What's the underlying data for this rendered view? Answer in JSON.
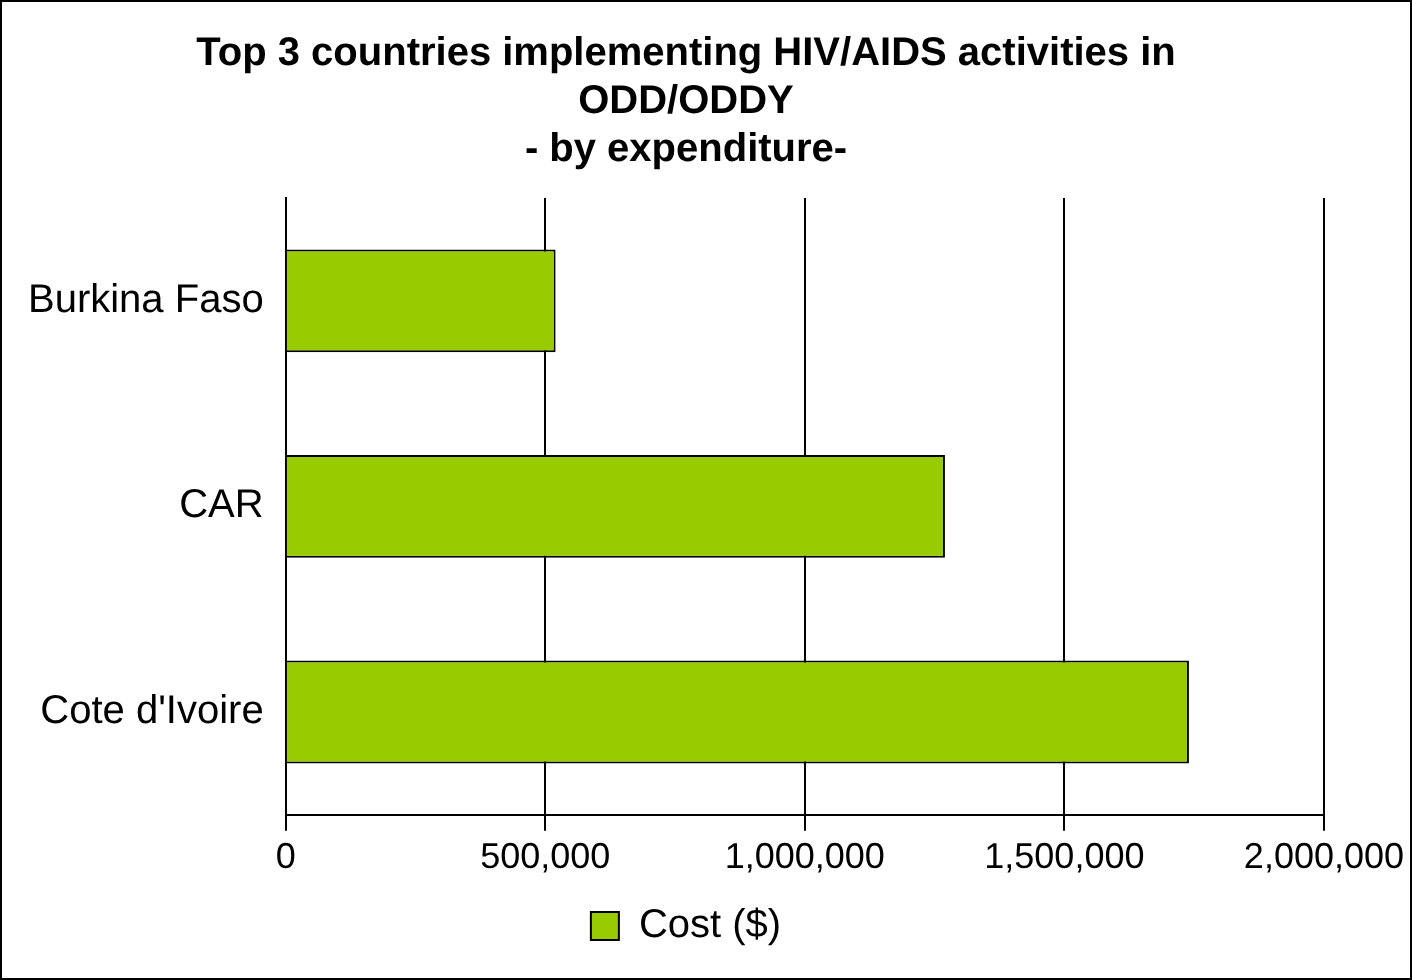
{
  "chart_data": {
    "type": "bar",
    "orientation": "horizontal",
    "title": "Top 3 countries implementing HIV/AIDS activities in ODD/ODDY",
    "subtitle": "- by expenditure-",
    "categories": [
      "Burkina Faso",
      "CAR",
      "Cote d'Ivoire"
    ],
    "series": [
      {
        "name": "Cost ($)",
        "color": "#99cc00",
        "values": [
          520000,
          1270000,
          1740000
        ]
      }
    ],
    "xlim": [
      0,
      2000000
    ],
    "xticks": [
      {
        "value": 0,
        "label": "0"
      },
      {
        "value": 500000,
        "label": "500,000"
      },
      {
        "value": 1000000,
        "label": "1,000,000"
      },
      {
        "value": 1500000,
        "label": "1,500,000"
      },
      {
        "value": 2000000,
        "label": "2,000,000"
      }
    ],
    "grid": "x",
    "legend": "bottom"
  }
}
